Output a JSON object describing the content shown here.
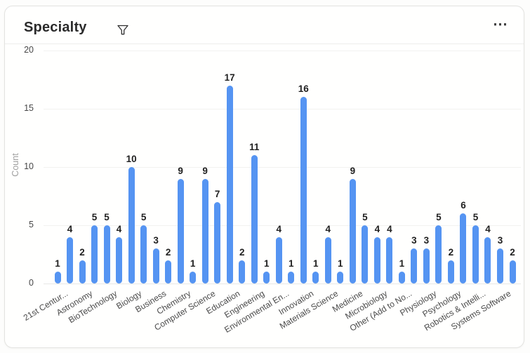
{
  "header": {
    "title": "Specialty",
    "filter_icon": "funnel",
    "menu_glyph": "⋯"
  },
  "chart_data": {
    "type": "bar",
    "title": "Specialty",
    "xlabel": "",
    "ylabel": "Count",
    "ylim": [
      0,
      20
    ],
    "yticks": [
      0,
      5,
      10,
      15,
      20
    ],
    "grid": true,
    "legend": "none",
    "bar_color": "#5594f2",
    "values": [
      1,
      4,
      2,
      5,
      5,
      4,
      10,
      5,
      3,
      2,
      9,
      1,
      9,
      7,
      17,
      2,
      11,
      1,
      4,
      1,
      16,
      1,
      4,
      1,
      9,
      5,
      4,
      4,
      1,
      3,
      3,
      5,
      2,
      6,
      5,
      4,
      3,
      2
    ],
    "value_labels_shown": true,
    "visible_x_labels": [
      "21st Centur...",
      "Astronomy",
      "BioTechnology",
      "Biology",
      "Business",
      "Chemistry",
      "Computer Science",
      "Education",
      "Engineering",
      "Environmental En...",
      "Innovation",
      "Materials Science",
      "Medicine",
      "Microbiology",
      "Other (Add to No...",
      "Physiology",
      "Psychology",
      "Robotics & Intelli...",
      "Systems Software"
    ],
    "visible_label_bar_indices": [
      0,
      2,
      4,
      6,
      8,
      10,
      12,
      14,
      16,
      18,
      20,
      22,
      24,
      26,
      28,
      30,
      32,
      34,
      36
    ],
    "x_labels_rotated": true
  }
}
